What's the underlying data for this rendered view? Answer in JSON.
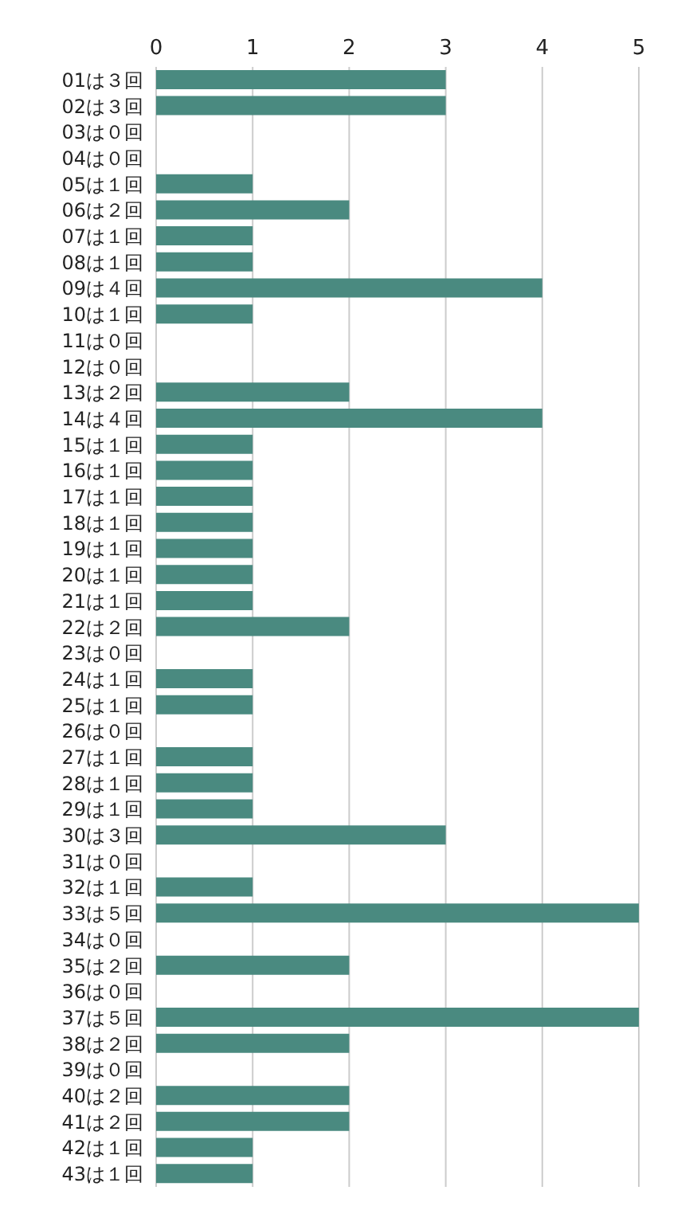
{
  "chart_data": {
    "type": "bar",
    "orientation": "horizontal",
    "categories": [
      "01は３回",
      "02は３回",
      "03は０回",
      "04は０回",
      "05は１回",
      "06は２回",
      "07は１回",
      "08は１回",
      "09は４回",
      "10は１回",
      "11は０回",
      "12は０回",
      "13は２回",
      "14は４回",
      "15は１回",
      "16は１回",
      "17は１回",
      "18は１回",
      "19は１回",
      "20は１回",
      "21は１回",
      "22は２回",
      "23は０回",
      "24は１回",
      "25は１回",
      "26は０回",
      "27は１回",
      "28は１回",
      "29は１回",
      "30は３回",
      "31は０回",
      "32は１回",
      "33は５回",
      "34は０回",
      "35は２回",
      "36は０回",
      "37は５回",
      "38は２回",
      "39は０回",
      "40は２回",
      "41は２回",
      "42は１回",
      "43は１回"
    ],
    "values": [
      3,
      3,
      0,
      0,
      1,
      2,
      1,
      1,
      4,
      1,
      0,
      0,
      2,
      4,
      1,
      1,
      1,
      1,
      1,
      1,
      1,
      2,
      0,
      1,
      1,
      0,
      1,
      1,
      1,
      3,
      0,
      1,
      5,
      0,
      2,
      0,
      5,
      2,
      0,
      2,
      2,
      1,
      1
    ],
    "color": "#4a8a80",
    "xlim": [
      0,
      5
    ],
    "xticks": [
      0,
      1,
      2,
      3,
      4,
      5
    ],
    "grid": "x"
  }
}
